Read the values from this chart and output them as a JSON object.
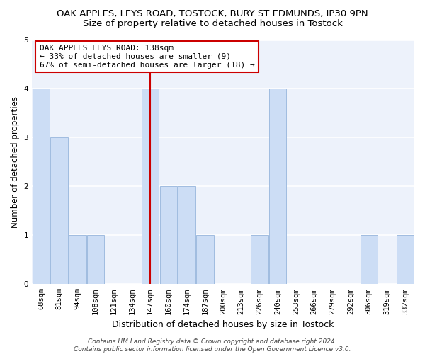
{
  "title": "OAK APPLES, LEYS ROAD, TOSTOCK, BURY ST EDMUNDS, IP30 9PN",
  "subtitle": "Size of property relative to detached houses in Tostock",
  "xlabel": "Distribution of detached houses by size in Tostock",
  "ylabel": "Number of detached properties",
  "categories": [
    "68sqm",
    "81sqm",
    "94sqm",
    "108sqm",
    "121sqm",
    "134sqm",
    "147sqm",
    "160sqm",
    "174sqm",
    "187sqm",
    "200sqm",
    "213sqm",
    "226sqm",
    "240sqm",
    "253sqm",
    "266sqm",
    "279sqm",
    "292sqm",
    "306sqm",
    "319sqm",
    "332sqm"
  ],
  "values": [
    4,
    3,
    1,
    1,
    0,
    0,
    4,
    2,
    2,
    1,
    0,
    0,
    1,
    4,
    0,
    0,
    0,
    0,
    1,
    0,
    1
  ],
  "bar_color": "#ccddf5",
  "bar_edge_color": "#a0bce0",
  "highlight_index": 6,
  "highlight_line_color": "#cc0000",
  "annotation_box_text": "OAK APPLES LEYS ROAD: 138sqm\n← 33% of detached houses are smaller (9)\n67% of semi-detached houses are larger (18) →",
  "annotation_box_edge_color": "#cc0000",
  "ylim": [
    0,
    5
  ],
  "yticks": [
    0,
    1,
    2,
    3,
    4,
    5
  ],
  "background_color": "#edf2fb",
  "grid_color": "#d8e4f5",
  "footer_text": "Contains HM Land Registry data © Crown copyright and database right 2024.\nContains public sector information licensed under the Open Government Licence v3.0.",
  "title_fontsize": 9.5,
  "subtitle_fontsize": 9.5,
  "xlabel_fontsize": 9,
  "ylabel_fontsize": 8.5,
  "tick_fontsize": 7.5,
  "annotation_fontsize": 8,
  "footer_fontsize": 6.5
}
